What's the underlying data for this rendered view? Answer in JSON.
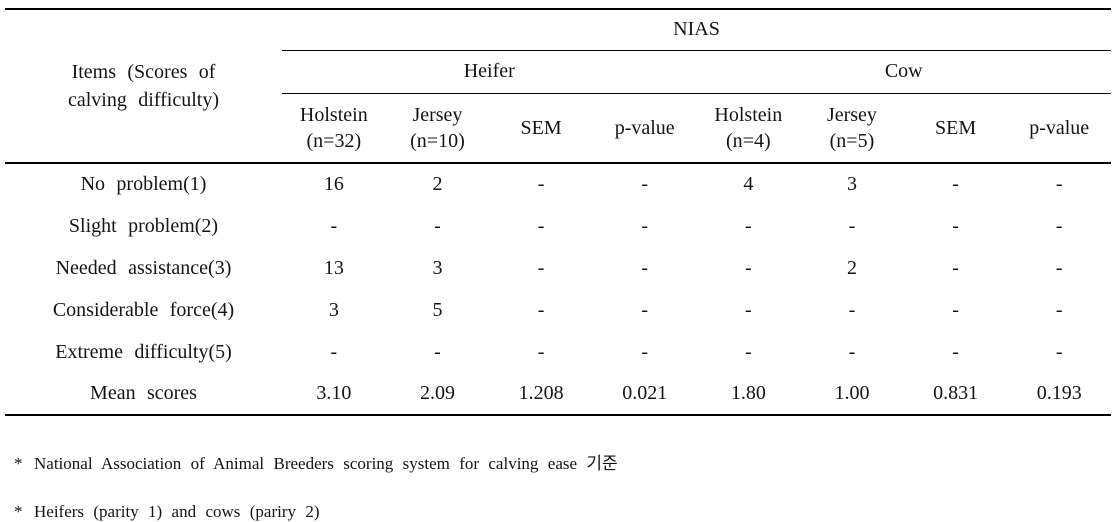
{
  "colors": {
    "background": "#ffffff",
    "text": "#141414",
    "rule": "#000000"
  },
  "table": {
    "row_header_title": "Items (Scores of\ncalving difficulty)",
    "group_header": "NIAS",
    "subgroups": [
      {
        "label": "Heifer"
      },
      {
        "label": "Cow"
      }
    ],
    "columns": [
      "Holstein\n(n=32)",
      "Jersey\n(n=10)",
      "SEM",
      "p-value",
      "Holstein\n(n=4)",
      "Jersey\n(n=5)",
      "SEM",
      "p-value"
    ],
    "rows": [
      {
        "label": "No problem(1)",
        "values": [
          "16",
          "2",
          "-",
          "-",
          "4",
          "3",
          "-",
          "-"
        ]
      },
      {
        "label": "Slight problem(2)",
        "values": [
          "-",
          "-",
          "-",
          "-",
          "-",
          "-",
          "-",
          "-"
        ]
      },
      {
        "label": "Needed assistance(3)",
        "values": [
          "13",
          "3",
          "-",
          "-",
          "-",
          "2",
          "-",
          "-"
        ]
      },
      {
        "label": "Considerable force(4)",
        "values": [
          "3",
          "5",
          "-",
          "-",
          "-",
          "-",
          "-",
          "-"
        ]
      },
      {
        "label": "Extreme difficulty(5)",
        "values": [
          "-",
          "-",
          "-",
          "-",
          "-",
          "-",
          "-",
          "-"
        ]
      },
      {
        "label": "Mean scores",
        "values": [
          "3.10",
          "2.09",
          "1.208",
          "0.021",
          "1.80",
          "1.00",
          "0.831",
          "0.193"
        ]
      }
    ]
  },
  "footnotes": [
    {
      "marker": "*",
      "text": "National Association of Animal Breeders scoring system for calving ease 기준"
    },
    {
      "marker": "*",
      "text": "Heifers (parity 1) and cows (pariry 2)"
    }
  ]
}
